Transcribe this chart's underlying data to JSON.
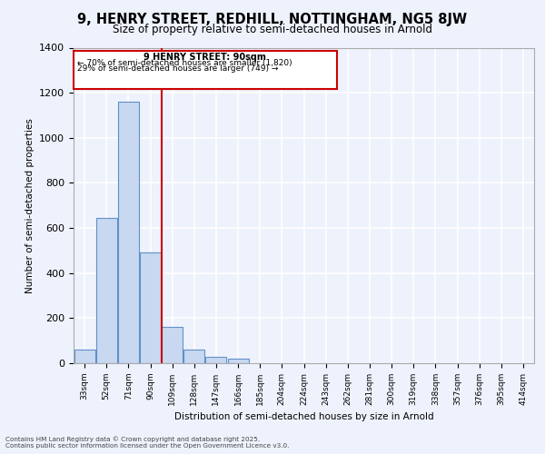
{
  "title_line1": "9, HENRY STREET, REDHILL, NOTTINGHAM, NG5 8JW",
  "title_line2": "Size of property relative to semi-detached houses in Arnold",
  "xlabel": "Distribution of semi-detached houses by size in Arnold",
  "ylabel": "Number of semi-detached properties",
  "bar_values": [
    60,
    645,
    1160,
    490,
    160,
    60,
    30,
    20,
    0,
    0,
    0,
    0,
    0,
    0,
    0,
    0,
    0,
    0,
    0,
    0,
    0
  ],
  "categories": [
    "33sqm",
    "52sqm",
    "71sqm",
    "90sqm",
    "109sqm",
    "128sqm",
    "147sqm",
    "166sqm",
    "185sqm",
    "204sqm",
    "224sqm",
    "243sqm",
    "262sqm",
    "281sqm",
    "300sqm",
    "319sqm",
    "338sqm",
    "357sqm",
    "376sqm",
    "395sqm",
    "414sqm"
  ],
  "bar_color": "#c8d8f0",
  "bar_edge_color": "#6090c8",
  "vline_color": "#cc0000",
  "annotation_title": "9 HENRY STREET: 90sqm",
  "annotation_line1": "← 70% of semi-detached houses are smaller (1,820)",
  "annotation_line2": "29% of semi-detached houses are larger (749) →",
  "annotation_box_color": "#cc0000",
  "ylim": [
    0,
    1400
  ],
  "yticks": [
    0,
    200,
    400,
    600,
    800,
    1000,
    1200,
    1400
  ],
  "background_color": "#eef2fc",
  "grid_color": "#ffffff",
  "footer_line1": "Contains HM Land Registry data © Crown copyright and database right 2025.",
  "footer_line2": "Contains public sector information licensed under the Open Government Licence v3.0."
}
